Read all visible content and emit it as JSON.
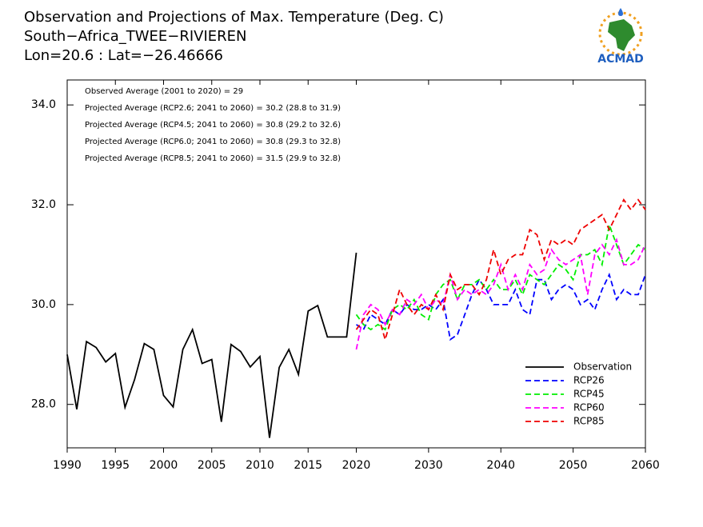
{
  "chart_data": {
    "type": "line",
    "title": [
      "Observation and Projections of Max. Temperature (Deg. C)",
      "South−Africa_TWEE−RIVIEREN",
      "Lon=20.6 : Lat=−26.46666"
    ],
    "logo_text": "ACMAD",
    "annotations": [
      "Observed Average (2001 to 2020) = 29",
      "Projected Average (RCP2.6; 2041 to 2060) = 30.2 (28.8 to 31.9)",
      "Projected Average (RCP4.5; 2041 to 2060) = 30.8 (29.2 to 32.6)",
      "Projected Average (RCP6.0; 2041 to 2060) = 30.8 (29.3 to 32.8)",
      "Projected Average (RCP8.5; 2041 to 2060) = 31.5 (29.9 to 32.8)"
    ],
    "xlim": [
      1990,
      2060
    ],
    "xticks": [
      1990,
      1995,
      2000,
      2005,
      2010,
      2015,
      2020,
      2030,
      2040,
      2050,
      2060
    ],
    "ylim": [
      27.13,
      34.5
    ],
    "yticks": [
      {
        "value": 28,
        "label": "28.0"
      },
      {
        "value": 30,
        "label": "30.0"
      },
      {
        "value": 32,
        "label": "32.0"
      },
      {
        "value": 34,
        "label": "34.0"
      }
    ],
    "legend": "lower right",
    "series": [
      {
        "name": "Observation",
        "color": "#000000",
        "dashed": false,
        "x": [
          1990,
          1991,
          1992,
          1993,
          1994,
          1995,
          1996,
          1997,
          1998,
          1999,
          2000,
          2001,
          2002,
          2003,
          2004,
          2005,
          2006,
          2007,
          2008,
          2009,
          2010,
          2011,
          2012,
          2013,
          2014,
          2015,
          2016,
          2017,
          2018,
          2019,
          2020
        ],
        "values": [
          29.0,
          27.9,
          29.26,
          29.14,
          28.85,
          29.02,
          27.94,
          28.5,
          29.22,
          29.1,
          28.18,
          27.95,
          29.1,
          29.5,
          28.82,
          28.9,
          27.65,
          29.2,
          29.06,
          28.75,
          28.96,
          27.33,
          28.74,
          29.1,
          28.6,
          29.87,
          29.98,
          29.35,
          29.35,
          29.35,
          31.04
        ]
      },
      {
        "name": "RCP26",
        "color": "#0000ff",
        "dashed": true,
        "x": [
          2020,
          2021,
          2022,
          2023,
          2024,
          2025,
          2026,
          2027,
          2028,
          2029,
          2030,
          2031,
          2032,
          2033,
          2034,
          2035,
          2036,
          2037,
          2038,
          2039,
          2040,
          2041,
          2042,
          2043,
          2044,
          2045,
          2046,
          2047,
          2048,
          2049,
          2050,
          2051,
          2052,
          2053,
          2054,
          2055,
          2056,
          2057,
          2058,
          2059,
          2060
        ],
        "values": [
          29.6,
          29.5,
          29.8,
          29.7,
          29.6,
          29.9,
          29.8,
          30.0,
          29.9,
          29.9,
          30.0,
          29.9,
          30.1,
          29.3,
          29.4,
          29.8,
          30.2,
          30.5,
          30.3,
          30.0,
          30.0,
          30.0,
          30.3,
          29.9,
          29.8,
          30.5,
          30.5,
          30.1,
          30.3,
          30.4,
          30.3,
          30.0,
          30.1,
          29.9,
          30.3,
          30.6,
          30.1,
          30.3,
          30.2,
          30.2,
          30.6
        ]
      },
      {
        "name": "RCP45",
        "color": "#00ee00",
        "dashed": true,
        "x": [
          2020,
          2021,
          2022,
          2023,
          2024,
          2025,
          2026,
          2027,
          2028,
          2029,
          2030,
          2031,
          2032,
          2033,
          2034,
          2035,
          2036,
          2037,
          2038,
          2039,
          2040,
          2041,
          2042,
          2043,
          2044,
          2045,
          2046,
          2047,
          2048,
          2049,
          2050,
          2051,
          2052,
          2053,
          2054,
          2055,
          2056,
          2057,
          2058,
          2059,
          2060
        ],
        "values": [
          29.8,
          29.6,
          29.5,
          29.6,
          29.5,
          29.9,
          30.0,
          29.9,
          30.1,
          29.8,
          29.7,
          30.2,
          30.4,
          30.5,
          30.1,
          30.4,
          30.4,
          30.5,
          30.3,
          30.5,
          30.3,
          30.3,
          30.5,
          30.2,
          30.6,
          30.5,
          30.4,
          30.6,
          30.8,
          30.7,
          30.5,
          31.0,
          31.0,
          31.1,
          30.8,
          31.6,
          31.2,
          30.8,
          31.0,
          31.2,
          31.1
        ]
      },
      {
        "name": "RCP60",
        "color": "#ff00ff",
        "dashed": true,
        "x": [
          2020,
          2021,
          2022,
          2023,
          2024,
          2025,
          2026,
          2027,
          2028,
          2029,
          2030,
          2031,
          2032,
          2033,
          2034,
          2035,
          2036,
          2037,
          2038,
          2039,
          2040,
          2041,
          2042,
          2043,
          2044,
          2045,
          2046,
          2047,
          2048,
          2049,
          2050,
          2051,
          2052,
          2053,
          2054,
          2055,
          2056,
          2057,
          2058,
          2059,
          2060
        ],
        "values": [
          29.1,
          29.8,
          30.0,
          29.9,
          29.6,
          29.9,
          29.8,
          30.1,
          30.0,
          30.2,
          29.9,
          30.1,
          30.0,
          30.6,
          30.1,
          30.3,
          30.2,
          30.3,
          30.2,
          30.4,
          30.8,
          30.3,
          30.6,
          30.3,
          30.8,
          30.6,
          30.7,
          31.1,
          30.9,
          30.8,
          30.9,
          31.0,
          30.2,
          31.0,
          31.2,
          31.0,
          31.3,
          30.8,
          30.8,
          30.9,
          31.2
        ]
      },
      {
        "name": "RCP85",
        "color": "#ee0000",
        "dashed": true,
        "x": [
          2020,
          2021,
          2022,
          2023,
          2024,
          2025,
          2026,
          2027,
          2028,
          2029,
          2030,
          2031,
          2032,
          2033,
          2034,
          2035,
          2036,
          2037,
          2038,
          2039,
          2040,
          2041,
          2042,
          2043,
          2044,
          2045,
          2046,
          2047,
          2048,
          2049,
          2050,
          2051,
          2052,
          2053,
          2054,
          2055,
          2056,
          2057,
          2058,
          2059,
          2060
        ],
        "values": [
          29.5,
          29.7,
          29.9,
          29.8,
          29.3,
          29.8,
          30.3,
          30.0,
          29.8,
          30.0,
          29.9,
          30.2,
          29.9,
          30.6,
          30.3,
          30.4,
          30.4,
          30.2,
          30.5,
          31.1,
          30.6,
          30.9,
          31.0,
          31.0,
          31.5,
          31.4,
          30.9,
          31.3,
          31.2,
          31.3,
          31.2,
          31.5,
          31.6,
          31.7,
          31.8,
          31.5,
          31.8,
          32.1,
          31.9,
          32.1,
          31.9
        ]
      }
    ]
  }
}
